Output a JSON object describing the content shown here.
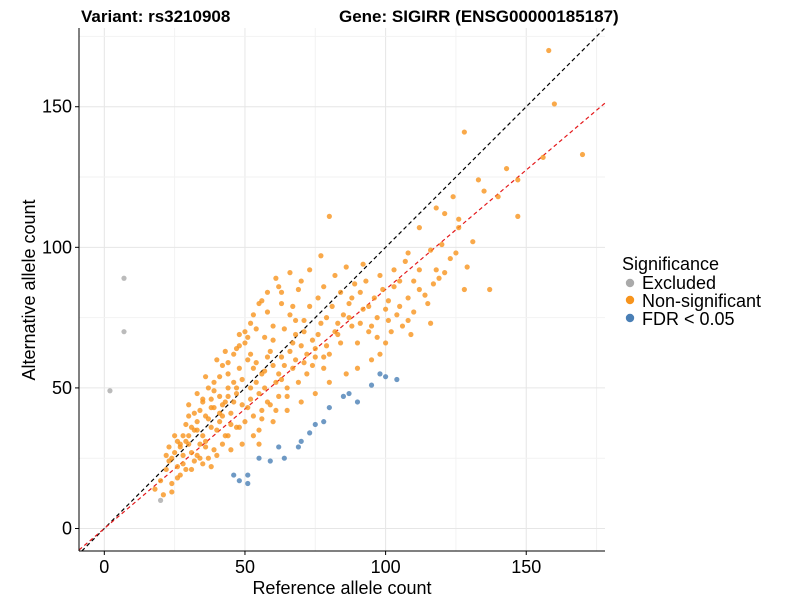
{
  "chart_data": {
    "type": "scatter",
    "title_left": "Variant: rs3210908",
    "title_right": "Gene: SIGIRR (ENSG00000185187)",
    "xlabel": "Reference allele count",
    "ylabel": "Alternative allele count",
    "xlim": [
      -9,
      178
    ],
    "ylim": [
      -8,
      178
    ],
    "x_ticks": [
      0,
      50,
      100,
      150
    ],
    "y_ticks": [
      0,
      50,
      100,
      150
    ],
    "grid": true,
    "legend": {
      "title": "Significance",
      "position": "right",
      "entries": [
        {
          "label": "Excluded",
          "color": "#aaaaaa"
        },
        {
          "label": "Non-significant",
          "color": "#f7941d"
        },
        {
          "label": "FDR < 0.05",
          "color": "#4a7fb5"
        }
      ]
    },
    "reference_lines": [
      {
        "name": "identity",
        "color": "#000000",
        "slope": 1,
        "intercept": 0
      },
      {
        "name": "fit",
        "color": "#e41a1c",
        "slope": 0.85,
        "intercept": 0
      }
    ],
    "series": [
      {
        "name": "Excluded",
        "color": "#aaaaaa",
        "points": [
          [
            2,
            49
          ],
          [
            7,
            70
          ],
          [
            7,
            89
          ],
          [
            20,
            10
          ]
        ]
      },
      {
        "name": "FDR < 0.05",
        "color": "#4a7fb5",
        "points": [
          [
            46,
            19
          ],
          [
            48,
            17
          ],
          [
            51,
            19
          ],
          [
            51,
            16
          ],
          [
            55,
            25
          ],
          [
            59,
            24
          ],
          [
            62,
            29
          ],
          [
            64,
            25
          ],
          [
            69,
            29
          ],
          [
            70,
            31
          ],
          [
            73,
            34
          ],
          [
            75,
            37
          ],
          [
            78,
            38
          ],
          [
            80,
            43
          ],
          [
            85,
            47
          ],
          [
            87,
            48
          ],
          [
            90,
            45
          ],
          [
            95,
            51
          ],
          [
            98,
            55
          ],
          [
            100,
            54
          ],
          [
            104,
            53
          ]
        ]
      },
      {
        "name": "Non-significant",
        "color": "#f7941d",
        "points": [
          [
            158,
            170
          ],
          [
            160,
            151
          ],
          [
            128,
            141
          ],
          [
            170,
            133
          ],
          [
            156,
            132
          ],
          [
            143,
            128
          ],
          [
            147,
            124
          ],
          [
            133,
            124
          ],
          [
            140,
            118
          ],
          [
            124,
            118
          ],
          [
            121,
            112
          ],
          [
            147,
            111
          ],
          [
            118,
            114
          ],
          [
            126,
            107
          ],
          [
            112,
            107
          ],
          [
            80,
            111
          ],
          [
            131,
            102
          ],
          [
            108,
            98
          ],
          [
            123,
            96
          ],
          [
            129,
            93
          ],
          [
            119,
            89
          ],
          [
            114,
            83
          ],
          [
            103,
            86
          ],
          [
            105,
            79
          ],
          [
            108,
            74
          ],
          [
            128,
            85
          ],
          [
            137,
            85
          ],
          [
            109,
            69
          ],
          [
            116,
            73
          ],
          [
            98,
            90
          ],
          [
            92,
            94
          ],
          [
            95,
            72
          ],
          [
            100,
            78
          ],
          [
            88,
            82
          ],
          [
            85,
            76
          ],
          [
            90,
            66
          ],
          [
            82,
            70
          ],
          [
            80,
            62
          ],
          [
            76,
            82
          ],
          [
            71,
            74
          ],
          [
            75,
            64
          ],
          [
            78,
            57
          ],
          [
            72,
            55
          ],
          [
            68,
            60
          ],
          [
            68,
            69
          ],
          [
            66,
            76
          ],
          [
            63,
            80
          ],
          [
            60,
            67
          ],
          [
            58,
            61
          ],
          [
            61,
            52
          ],
          [
            64,
            58
          ],
          [
            65,
            47
          ],
          [
            61,
            42
          ],
          [
            58,
            45
          ],
          [
            56,
            55
          ],
          [
            54,
            59
          ],
          [
            52,
            62
          ],
          [
            49,
            53
          ],
          [
            47,
            48
          ],
          [
            52,
            46
          ],
          [
            56,
            39
          ],
          [
            53,
            33
          ],
          [
            49,
            30
          ],
          [
            55,
            30
          ],
          [
            45,
            41
          ],
          [
            42,
            44
          ],
          [
            41,
            38
          ],
          [
            43,
            33
          ],
          [
            45,
            28
          ],
          [
            40,
            26
          ],
          [
            38,
            22
          ],
          [
            35,
            33
          ],
          [
            37,
            39
          ],
          [
            33,
            38
          ],
          [
            30,
            30
          ],
          [
            28,
            26
          ],
          [
            26,
            22
          ],
          [
            25,
            33
          ],
          [
            23,
            29
          ],
          [
            22,
            21
          ],
          [
            20,
            17
          ],
          [
            18,
            14
          ],
          [
            21,
            12
          ],
          [
            24,
            13
          ],
          [
            27,
            19
          ],
          [
            31,
            21
          ],
          [
            33,
            26
          ],
          [
            36,
            29
          ],
          [
            38,
            46
          ],
          [
            44,
            55
          ],
          [
            47,
            64
          ],
          [
            50,
            70
          ],
          [
            53,
            76
          ],
          [
            55,
            80
          ],
          [
            58,
            84
          ],
          [
            62,
            86
          ],
          [
            70,
            88
          ],
          [
            73,
            92
          ],
          [
            77,
            97
          ],
          [
            60,
            72
          ],
          [
            57,
            68
          ],
          [
            51,
            60
          ],
          [
            48,
            57
          ],
          [
            46,
            52
          ],
          [
            44,
            47
          ],
          [
            42,
            40
          ],
          [
            40,
            35
          ],
          [
            36,
            31
          ],
          [
            34,
            25
          ],
          [
            32,
            35
          ],
          [
            29,
            31
          ],
          [
            27,
            29
          ],
          [
            30,
            40
          ],
          [
            34,
            42
          ],
          [
            39,
            49
          ],
          [
            48,
            36
          ],
          [
            55,
            35
          ],
          [
            60,
            38
          ],
          [
            65,
            42
          ],
          [
            70,
            45
          ],
          [
            75,
            48
          ],
          [
            80,
            52
          ],
          [
            86,
            55
          ],
          [
            90,
            57
          ],
          [
            95,
            60
          ],
          [
            98,
            62
          ],
          [
            100,
            66
          ],
          [
            102,
            70
          ],
          [
            106,
            72
          ],
          [
            110,
            77
          ],
          [
            115,
            80
          ],
          [
            118,
            92
          ],
          [
            110,
            88
          ],
          [
            96,
            82
          ],
          [
            92,
            78
          ],
          [
            88,
            72
          ],
          [
            84,
            66
          ],
          [
            78,
            61
          ],
          [
            74,
            58
          ],
          [
            69,
            52
          ],
          [
            65,
            50
          ],
          [
            62,
            47
          ],
          [
            59,
            44
          ],
          [
            56,
            42
          ],
          [
            53,
            40
          ],
          [
            50,
            38
          ],
          [
            47,
            36
          ],
          [
            44,
            33
          ],
          [
            42,
            30
          ],
          [
            39,
            28
          ],
          [
            37,
            25
          ],
          [
            35,
            23
          ],
          [
            32,
            24
          ],
          [
            29,
            21
          ],
          [
            26,
            18
          ],
          [
            24,
            16
          ],
          [
            23,
            24
          ],
          [
            25,
            27
          ],
          [
            28,
            33
          ],
          [
            31,
            36
          ],
          [
            35,
            45
          ],
          [
            39,
            52
          ],
          [
            42,
            58
          ],
          [
            46,
            62
          ],
          [
            50,
            66
          ],
          [
            54,
            71
          ],
          [
            58,
            77
          ],
          [
            63,
            84
          ],
          [
            67,
            79
          ],
          [
            71,
            70
          ],
          [
            74,
            67
          ],
          [
            77,
            73
          ],
          [
            81,
            79
          ],
          [
            84,
            84
          ],
          [
            89,
            87
          ],
          [
            93,
            88
          ],
          [
            97,
            75
          ],
          [
            101,
            81
          ],
          [
            105,
            88
          ],
          [
            112,
            92
          ],
          [
            116,
            99
          ],
          [
            120,
            101
          ],
          [
            126,
            110
          ],
          [
            135,
            120
          ],
          [
            52,
            50
          ],
          [
            57,
            50
          ],
          [
            62,
            55
          ],
          [
            66,
            63
          ],
          [
            70,
            65
          ],
          [
            60,
            58
          ],
          [
            55,
            48
          ],
          [
            49,
            44
          ],
          [
            45,
            37
          ],
          [
            41,
            41
          ],
          [
            38,
            36
          ],
          [
            34,
            30
          ],
          [
            31,
            27
          ],
          [
            28,
            23
          ],
          [
            46,
            45
          ],
          [
            51,
            43
          ],
          [
            54,
            52
          ],
          [
            57,
            56
          ],
          [
            63,
            61
          ],
          [
            67,
            66
          ],
          [
            72,
            62
          ],
          [
            76,
            69
          ],
          [
            79,
            75
          ],
          [
            83,
            73
          ],
          [
            87,
            80
          ],
          [
            91,
            84
          ],
          [
            94,
            79
          ],
          [
            99,
            85
          ],
          [
            103,
            92
          ],
          [
            107,
            95
          ],
          [
            30,
            44
          ],
          [
            33,
            48
          ],
          [
            36,
            54
          ],
          [
            40,
            60
          ],
          [
            43,
            63
          ],
          [
            48,
            69
          ],
          [
            52,
            73
          ],
          [
            56,
            81
          ],
          [
            61,
            89
          ],
          [
            66,
            91
          ],
          [
            69,
            85
          ],
          [
            73,
            79
          ],
          [
            78,
            86
          ],
          [
            82,
            90
          ],
          [
            86,
            93
          ],
          [
            64,
            71
          ],
          [
            68,
            74
          ],
          [
            59,
            63
          ],
          [
            53,
            57
          ],
          [
            47,
            50
          ],
          [
            43,
            45
          ],
          [
            39,
            43
          ],
          [
            36,
            40
          ],
          [
            33,
            35
          ],
          [
            30,
            33
          ],
          [
            27,
            30
          ],
          [
            24,
            25
          ],
          [
            22,
            26
          ],
          [
            26,
            31
          ],
          [
            29,
            37
          ],
          [
            32,
            41
          ],
          [
            35,
            46
          ],
          [
            37,
            50
          ],
          [
            41,
            54
          ],
          [
            44,
            59
          ],
          [
            48,
            65
          ],
          [
            51,
            68
          ],
          [
            44,
            50
          ],
          [
            41,
            47
          ],
          [
            38,
            43
          ],
          [
            63,
            53
          ],
          [
            67,
            57
          ],
          [
            71,
            59
          ],
          [
            75,
            61
          ],
          [
            79,
            65
          ],
          [
            83,
            69
          ],
          [
            87,
            75
          ],
          [
            91,
            73
          ],
          [
            94,
            70
          ],
          [
            97,
            68
          ],
          [
            101,
            74
          ],
          [
            104,
            76
          ],
          [
            108,
            82
          ],
          [
            112,
            85
          ],
          [
            117,
            87
          ],
          [
            121,
            91
          ],
          [
            125,
            98
          ]
        ]
      }
    ]
  }
}
